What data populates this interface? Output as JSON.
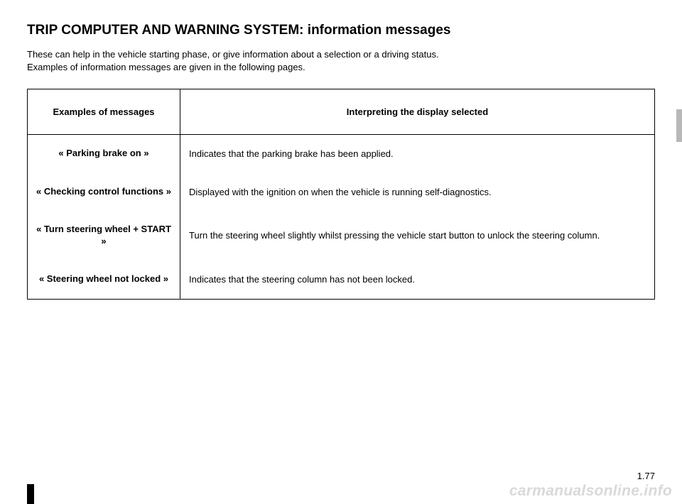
{
  "page": {
    "title": "TRIP COMPUTER AND WARNING SYSTEM: information messages",
    "intro_line1": "These can help in the vehicle starting phase, or give information about a selection or a driving status.",
    "intro_line2": "Examples of information messages are given in the following pages.",
    "page_number": "1.77",
    "watermark": "carmanualsonline.info"
  },
  "table": {
    "header_messages": "Examples of messages",
    "header_interpret": "Interpreting the display selected",
    "rows": [
      {
        "message": "« Parking brake on »",
        "interpretation": "Indicates that the parking brake has been applied."
      },
      {
        "message": "« Checking control functions »",
        "interpretation": "Displayed with the ignition on when the vehicle is running self-diagnostics."
      },
      {
        "message": "« Turn steering wheel + START »",
        "interpretation": "Turn the steering wheel slightly whilst pressing the vehicle start button to unlock the steering column."
      },
      {
        "message": "« Steering wheel not locked »",
        "interpretation": "Indicates that the steering column has not been locked."
      }
    ]
  },
  "colors": {
    "text": "#000000",
    "background": "#ffffff",
    "side_tab": "#b8b8b8",
    "watermark": "#d9d9d9"
  }
}
